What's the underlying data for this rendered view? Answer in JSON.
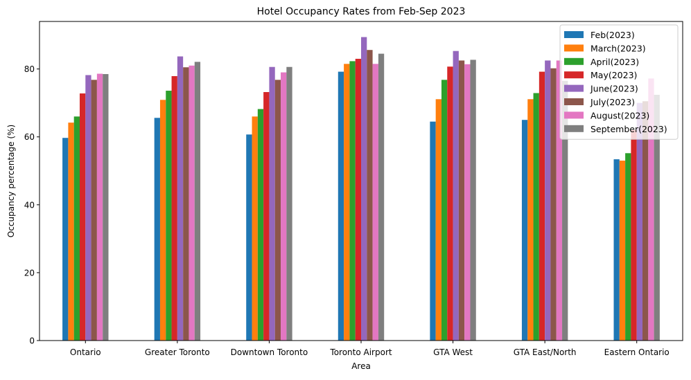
{
  "chart_data": {
    "type": "bar",
    "title": "Hotel Occupancy Rates from Feb-Sep 2023",
    "xlabel": "Area",
    "ylabel": "Occupancy percentage (%)",
    "ylim": [
      0,
      94
    ],
    "yticks": [
      0,
      20,
      40,
      60,
      80
    ],
    "grid": false,
    "legend_position": "top-right",
    "categories": [
      "Ontario",
      "Greater Toronto",
      "Downtown Toronto",
      "Toronto Airport",
      "GTA West",
      "GTA East/North",
      "Eastern Ontario"
    ],
    "series": [
      {
        "name": "Feb(2023)",
        "color": "#1f77b4",
        "values": [
          59.7,
          65.6,
          60.7,
          79.2,
          64.5,
          65.0,
          53.4
        ]
      },
      {
        "name": "March(2023)",
        "color": "#ff7f0e",
        "values": [
          64.2,
          70.9,
          66.0,
          81.5,
          71.1,
          71.1,
          53.0
        ]
      },
      {
        "name": "April(2023)",
        "color": "#2ca02c",
        "values": [
          66.0,
          73.6,
          68.2,
          82.3,
          76.8,
          72.9,
          55.2
        ]
      },
      {
        "name": "May(2023)",
        "color": "#d62728",
        "values": [
          72.8,
          77.9,
          73.2,
          83.0,
          80.7,
          79.2,
          62.0
        ]
      },
      {
        "name": "June(2023)",
        "color": "#9467bd",
        "values": [
          78.2,
          83.7,
          80.6,
          89.4,
          85.3,
          82.5,
          70.0
        ]
      },
      {
        "name": "July(2023)",
        "color": "#8c564b",
        "values": [
          76.8,
          80.5,
          76.8,
          85.6,
          82.5,
          80.2,
          70.5
        ]
      },
      {
        "name": "August(2023)",
        "color": "#e377c2",
        "values": [
          78.6,
          81.0,
          79.0,
          81.5,
          81.4,
          82.5,
          77.2
        ]
      },
      {
        "name": "September(2023)",
        "color": "#7f7f7f",
        "values": [
          78.5,
          82.1,
          80.6,
          84.5,
          82.7,
          76.5,
          72.4
        ]
      }
    ]
  }
}
